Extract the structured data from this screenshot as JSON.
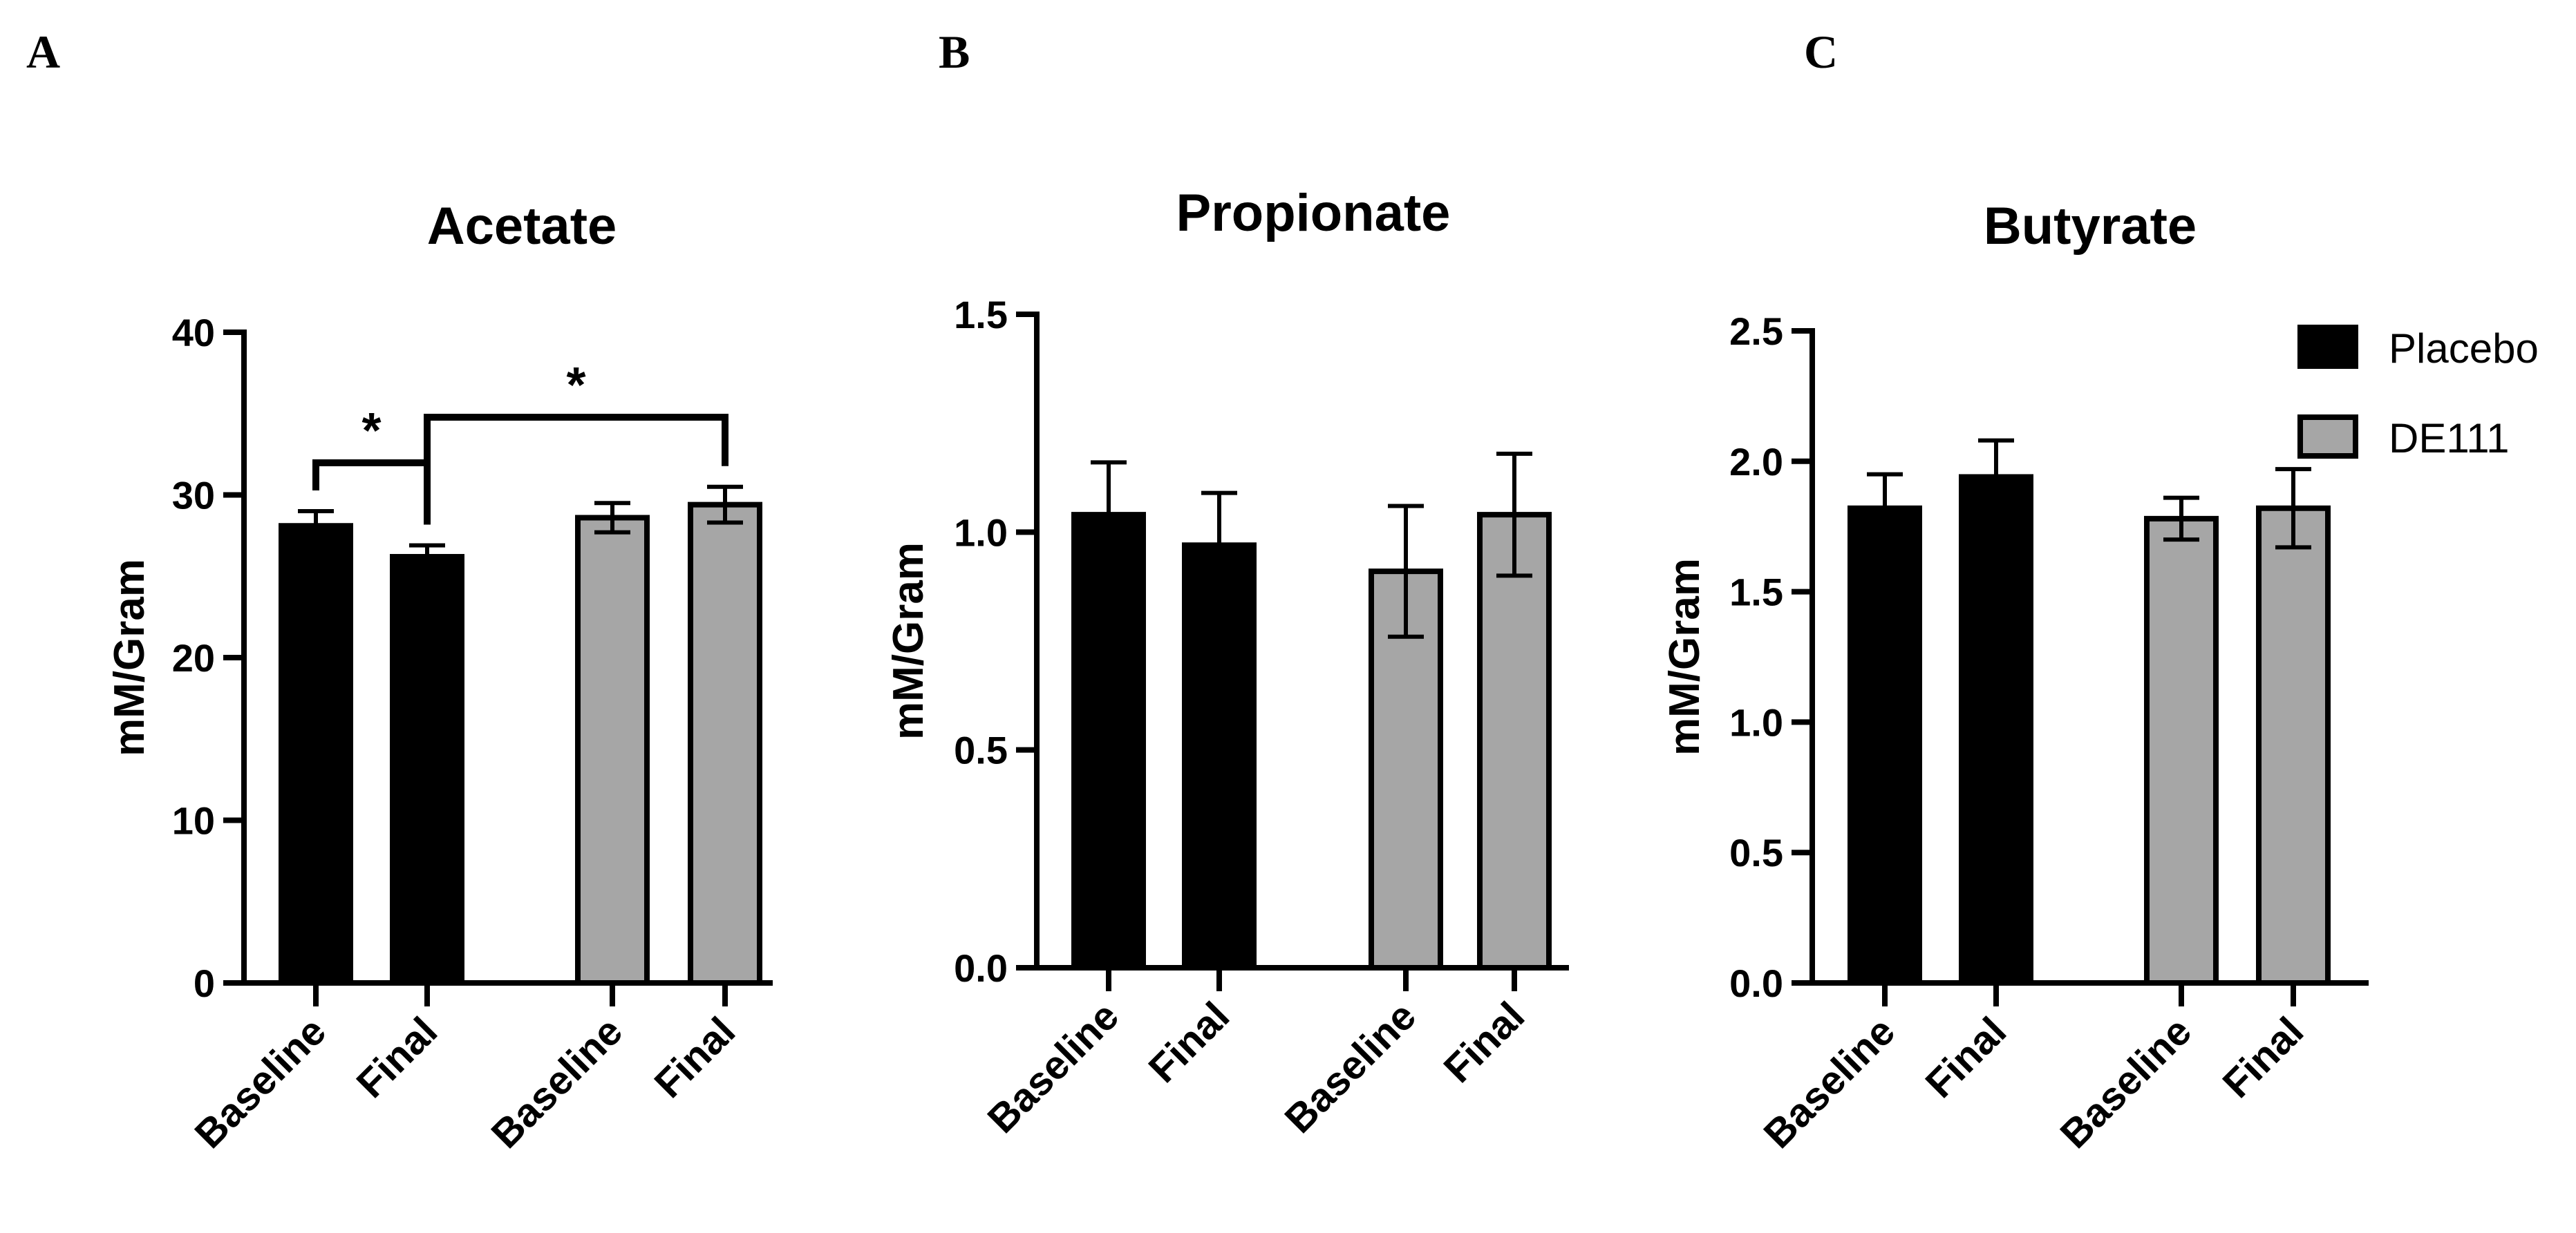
{
  "chart_data": [
    {
      "panel": "A",
      "type": "bar",
      "title": "Acetate",
      "xlabel": "",
      "ylabel": "mM/Gram",
      "ylim": [
        0,
        40
      ],
      "yticks": [
        "0",
        "10",
        "20",
        "30",
        "40"
      ],
      "categories": [
        "Baseline",
        "Final",
        "Baseline",
        "Final"
      ],
      "groups": [
        "Placebo",
        "Placebo",
        "DE111",
        "DE111"
      ],
      "values": [
        28.1,
        26.2,
        28.6,
        29.4
      ],
      "errors": [
        0.9,
        0.7,
        0.9,
        1.1
      ],
      "significance": [
        {
          "from": 0,
          "to": 1,
          "label": "*"
        },
        {
          "from": 1,
          "to": 3,
          "label": "*"
        }
      ]
    },
    {
      "panel": "B",
      "type": "bar",
      "title": "Propionate",
      "xlabel": "",
      "ylabel": "mM/Gram",
      "ylim": [
        0,
        1.5
      ],
      "yticks": [
        "0.0",
        "0.5",
        "1.0",
        "1.5"
      ],
      "categories": [
        "Baseline",
        "Final",
        "Baseline",
        "Final"
      ],
      "groups": [
        "Placebo",
        "Placebo",
        "DE111",
        "DE111"
      ],
      "values": [
        1.04,
        0.97,
        0.91,
        1.04
      ],
      "errors": [
        0.12,
        0.12,
        0.15,
        0.14
      ],
      "significance": []
    },
    {
      "panel": "C",
      "type": "bar",
      "title": "Butyrate",
      "xlabel": "",
      "ylabel": "mM/Gram",
      "ylim": [
        0,
        2.5
      ],
      "yticks": [
        "0.0",
        "0.5",
        "1.0",
        "1.5",
        "2.0",
        "2.5"
      ],
      "categories": [
        "Baseline",
        "Final",
        "Baseline",
        "Final"
      ],
      "groups": [
        "Placebo",
        "Placebo",
        "DE111",
        "DE111"
      ],
      "values": [
        1.82,
        1.94,
        1.78,
        1.82
      ],
      "errors": [
        0.13,
        0.14,
        0.08,
        0.15
      ],
      "significance": []
    }
  ],
  "legend": {
    "position": "top-right",
    "items": [
      {
        "label": "Placebo",
        "color": "#000000"
      },
      {
        "label": "DE111",
        "color": "#a6a6a6"
      }
    ]
  },
  "colors": {
    "Placebo": "#000000",
    "DE111": "#a6a6a6",
    "outline": "#000000"
  }
}
